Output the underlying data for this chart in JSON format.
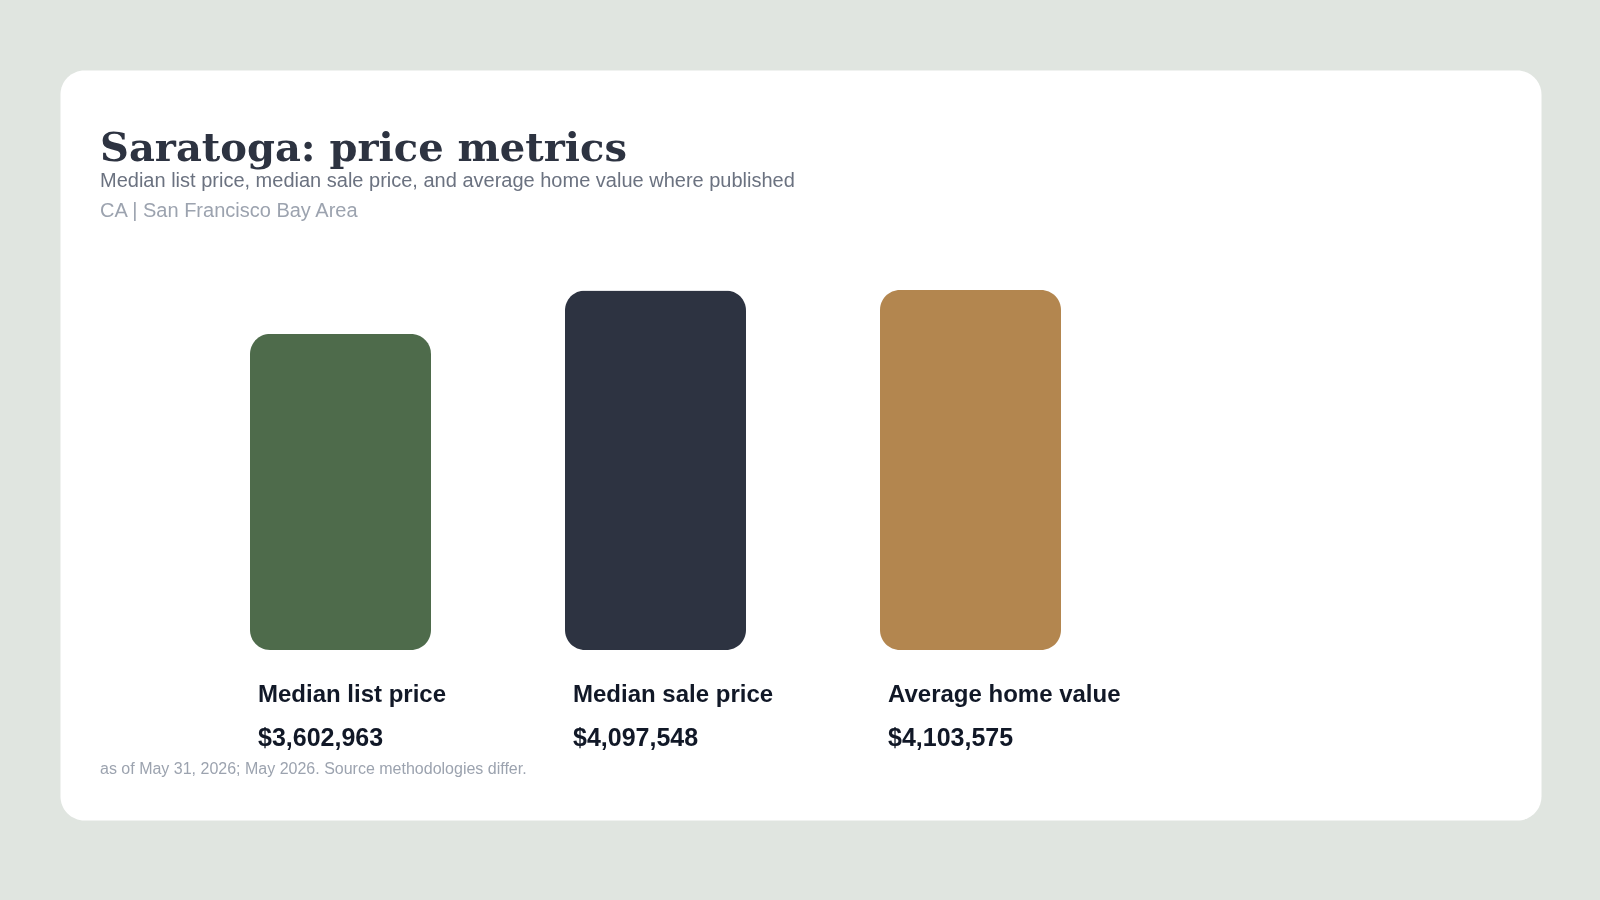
{
  "chart_data": {
    "type": "bar",
    "title": "Saratoga: price metrics",
    "subtitle": "Median list price, median sale price, and average home value where published",
    "categories": [
      "Median list price",
      "Median sale price",
      "Average home value"
    ],
    "values": [
      3602963,
      4097548,
      4103575
    ],
    "value_labels": [
      "$3,602,963",
      "$4,097,548",
      "$4,103,575"
    ],
    "colors": [
      "#4e6b4b",
      "#2d3341",
      "#b3864f"
    ],
    "annotations": [
      "CA | San Francisco Bay Area",
      "as of May 31, 2026; May 2026. Source methodologies differ."
    ]
  }
}
